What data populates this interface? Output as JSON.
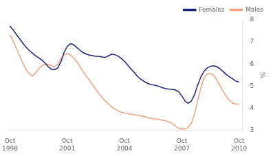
{
  "chart_data": {
    "type": "line",
    "ylabel": "%",
    "xlim": [
      1998.67,
      2010.92
    ],
    "xticks": [
      {
        "value": 1998.75,
        "label": "Oct\n1998"
      },
      {
        "value": 2001.75,
        "label": "Oct\n2001"
      },
      {
        "value": 2004.75,
        "label": "Oct\n2004"
      },
      {
        "value": 2007.75,
        "label": "Oct\n2007"
      },
      {
        "value": 2010.75,
        "label": "Oct\n2010"
      }
    ],
    "ylim": [
      3,
      8
    ],
    "yticks": [
      3,
      4,
      5,
      6,
      7,
      8
    ],
    "grid": false,
    "legend": "upper right",
    "x": [
      1998.75,
      1998.92,
      1999.08,
      1999.25,
      1999.42,
      1999.58,
      1999.75,
      1999.92,
      2000.08,
      2000.25,
      2000.42,
      2000.58,
      2000.75,
      2000.92,
      2001.08,
      2001.25,
      2001.42,
      2001.58,
      2001.75,
      2001.92,
      2002.08,
      2002.25,
      2002.42,
      2002.58,
      2002.75,
      2002.92,
      2003.08,
      2003.25,
      2003.42,
      2003.58,
      2003.75,
      2003.92,
      2004.08,
      2004.25,
      2004.42,
      2004.58,
      2004.75,
      2004.92,
      2005.08,
      2005.25,
      2005.42,
      2005.58,
      2005.75,
      2005.92,
      2006.08,
      2006.25,
      2006.42,
      2006.58,
      2006.75,
      2006.92,
      2007.08,
      2007.25,
      2007.42,
      2007.58,
      2007.75,
      2007.92,
      2008.08,
      2008.25,
      2008.42,
      2008.58,
      2008.75,
      2008.92,
      2009.08,
      2009.25,
      2009.42,
      2009.58,
      2009.75,
      2009.92,
      2010.08,
      2010.25,
      2010.42,
      2010.58,
      2010.75
    ],
    "series": [
      {
        "name": "Females",
        "color": "#1a237e",
        "values": [
          7.72,
          7.55,
          7.35,
          7.15,
          6.95,
          6.78,
          6.62,
          6.5,
          6.38,
          6.28,
          6.18,
          6.05,
          5.88,
          5.76,
          5.74,
          5.82,
          6.1,
          6.52,
          6.8,
          6.92,
          6.88,
          6.75,
          6.62,
          6.52,
          6.45,
          6.4,
          6.38,
          6.35,
          6.35,
          6.32,
          6.3,
          6.38,
          6.45,
          6.42,
          6.35,
          6.25,
          6.12,
          5.95,
          5.78,
          5.62,
          5.45,
          5.32,
          5.22,
          5.14,
          5.08,
          5.05,
          5.02,
          4.98,
          4.92,
          4.88,
          4.86,
          4.85,
          4.82,
          4.75,
          4.55,
          4.32,
          4.22,
          4.32,
          4.62,
          5.05,
          5.42,
          5.68,
          5.82,
          5.9,
          5.92,
          5.88,
          5.78,
          5.65,
          5.52,
          5.42,
          5.32,
          5.22,
          5.18
        ]
      },
      {
        "name": "Males",
        "color": "#f4a07a",
        "values": [
          7.32,
          7.05,
          6.72,
          6.38,
          6.05,
          5.78,
          5.58,
          5.45,
          5.58,
          5.78,
          5.92,
          6.0,
          5.98,
          5.92,
          5.88,
          5.98,
          6.25,
          6.42,
          6.48,
          6.42,
          6.28,
          6.1,
          5.88,
          5.65,
          5.45,
          5.25,
          5.05,
          4.85,
          4.65,
          4.48,
          4.32,
          4.18,
          4.05,
          3.95,
          3.88,
          3.82,
          3.78,
          3.75,
          3.72,
          3.7,
          3.68,
          3.65,
          3.62,
          3.58,
          3.55,
          3.52,
          3.5,
          3.48,
          3.45,
          3.42,
          3.38,
          3.3,
          3.18,
          3.08,
          3.05,
          3.05,
          3.12,
          3.32,
          3.75,
          4.35,
          4.95,
          5.38,
          5.55,
          5.58,
          5.48,
          5.28,
          5.02,
          4.75,
          4.52,
          4.35,
          4.22,
          4.18,
          4.18
        ]
      }
    ]
  }
}
